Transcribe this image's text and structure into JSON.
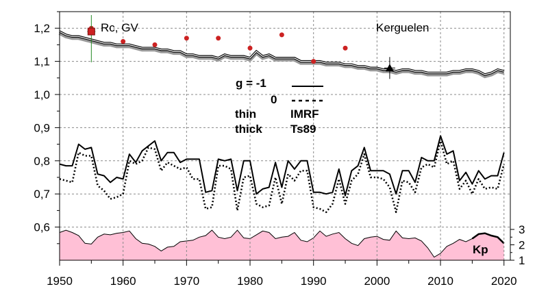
{
  "chart_data": {
    "type": "line",
    "title": "",
    "xlabel": "",
    "ylabel": "",
    "xlim": [
      1950,
      2021
    ],
    "ylim": [
      0.5,
      1.25
    ],
    "x_ticks": [
      "1950",
      "1960",
      "1970",
      "1980",
      "1990",
      "2000",
      "2010",
      "2020"
    ],
    "y_ticks": [
      "0,6",
      "0,7",
      "0,8",
      "0,9",
      "1,0",
      "1,1",
      "1,2"
    ],
    "kp_axis": {
      "ticks": [
        "1",
        "2",
        "3"
      ],
      "label": "Kp"
    },
    "grid": true,
    "annotations": {
      "station": "Kerguelen",
      "rc_label": "Rc, GV",
      "legend_g": "g  = -1",
      "legend_zero": "0",
      "legend_thin": "thin",
      "legend_thick": "thick",
      "legend_imrf": "IMRF",
      "legend_ts89": "Ts89",
      "kp_label": "Kp"
    },
    "years": [
      1950,
      1951,
      1952,
      1953,
      1954,
      1955,
      1956,
      1957,
      1958,
      1959,
      1960,
      1961,
      1962,
      1963,
      1964,
      1965,
      1966,
      1967,
      1968,
      1969,
      1970,
      1971,
      1972,
      1973,
      1974,
      1975,
      1976,
      1977,
      1978,
      1979,
      1980,
      1981,
      1982,
      1983,
      1984,
      1985,
      1986,
      1987,
      1988,
      1989,
      1990,
      1991,
      1992,
      1993,
      1994,
      1995,
      1996,
      1997,
      1998,
      1999,
      2000,
      2001,
      2002,
      2003,
      2004,
      2005,
      2006,
      2007,
      2008,
      2009,
      2010,
      2011,
      2012,
      2013,
      2014,
      2015,
      2016,
      2017,
      2018,
      2019,
      2020
    ],
    "series": [
      {
        "style": "solid",
        "values": [
          0.79,
          0.785,
          0.785,
          0.85,
          0.835,
          0.84,
          0.76,
          0.755,
          0.735,
          0.75,
          0.745,
          0.82,
          0.795,
          0.83,
          0.845,
          0.86,
          0.8,
          0.825,
          0.825,
          0.795,
          0.805,
          0.805,
          0.805,
          0.705,
          0.71,
          0.805,
          0.8,
          0.805,
          0.71,
          0.8,
          0.8,
          0.7,
          0.715,
          0.72,
          0.795,
          0.72,
          0.8,
          0.775,
          0.8,
          0.8,
          0.705,
          0.705,
          0.7,
          0.705,
          0.775,
          0.695,
          0.77,
          0.785,
          0.84,
          0.77,
          0.77,
          0.77,
          0.76,
          0.7,
          0.77,
          0.77,
          0.735,
          0.81,
          0.8,
          0.8,
          0.875,
          0.82,
          0.83,
          0.74,
          0.765,
          0.73,
          0.77,
          0.745,
          0.755,
          0.755,
          0.825
        ]
      },
      {
        "style": "dotted",
        "values": [
          0.745,
          0.74,
          0.735,
          0.825,
          0.815,
          0.815,
          0.725,
          0.71,
          0.685,
          0.69,
          0.7,
          0.8,
          0.79,
          0.8,
          0.84,
          0.835,
          0.77,
          0.795,
          0.785,
          0.775,
          0.78,
          0.745,
          0.745,
          0.655,
          0.66,
          0.785,
          0.785,
          0.775,
          0.65,
          0.75,
          0.755,
          0.67,
          0.66,
          0.665,
          0.75,
          0.67,
          0.76,
          0.74,
          0.77,
          0.77,
          0.66,
          0.655,
          0.645,
          0.67,
          0.745,
          0.67,
          0.74,
          0.76,
          0.82,
          0.75,
          0.75,
          0.745,
          0.72,
          0.645,
          0.74,
          0.735,
          0.705,
          0.78,
          0.79,
          0.78,
          0.86,
          0.79,
          0.8,
          0.715,
          0.74,
          0.7,
          0.745,
          0.715,
          0.72,
          0.715,
          0.79
        ]
      }
    ],
    "rc_series": {
      "values": [
        1.19,
        1.18,
        1.175,
        1.175,
        1.17,
        1.165,
        1.16,
        1.155,
        1.155,
        1.15,
        1.15,
        1.15,
        1.145,
        1.14,
        1.14,
        1.14,
        1.135,
        1.135,
        1.13,
        1.13,
        1.12,
        1.12,
        1.115,
        1.115,
        1.115,
        1.11,
        1.12,
        1.115,
        1.115,
        1.115,
        1.11,
        1.13,
        1.115,
        1.12,
        1.11,
        1.11,
        1.11,
        1.11,
        1.1,
        1.1,
        1.1,
        1.1,
        1.095,
        1.095,
        1.095,
        1.09,
        1.09,
        1.085,
        1.085,
        1.08,
        1.08,
        1.075,
        1.075,
        1.07,
        1.075,
        1.075,
        1.07,
        1.07,
        1.065,
        1.065,
        1.065,
        1.065,
        1.07,
        1.07,
        1.075,
        1.075,
        1.07,
        1.06,
        1.065,
        1.075,
        1.07
      ]
    },
    "rc_points": {
      "x": [
        1955,
        1960,
        1965,
        1970,
        1975,
        1980,
        1985,
        1990,
        1995
      ],
      "values": [
        1.2,
        1.16,
        1.15,
        1.17,
        1.17,
        1.14,
        1.18,
        1.1,
        1.14
      ],
      "color": "#cc2222"
    },
    "rc_marker_square": {
      "x": 1955,
      "value": 1.19,
      "color": "#cc2222"
    },
    "rc_marker_triangle": {
      "x": 2002,
      "value": 1.08,
      "color": "#000000"
    },
    "kp_series": {
      "ylim": [
        1,
        3
      ],
      "fill_color": "#ffc0d6",
      "values": [
        2.8,
        2.95,
        2.8,
        2.6,
        2.1,
        2.05,
        2.5,
        2.7,
        2.65,
        2.75,
        2.8,
        2.9,
        2.4,
        2.1,
        2.05,
        1.9,
        1.6,
        1.85,
        1.9,
        2.2,
        2.25,
        2.3,
        2.5,
        2.6,
        2.95,
        2.5,
        2.4,
        2.5,
        2.95,
        2.45,
        2.4,
        2.65,
        2.9,
        2.8,
        2.4,
        2.5,
        2.55,
        2.8,
        2.3,
        2.2,
        2.45,
        2.9,
        2.55,
        2.7,
        2.8,
        2.4,
        2.1,
        1.95,
        2.4,
        2.5,
        2.55,
        2.35,
        2.3,
        2.9,
        2.45,
        2.4,
        2.45,
        2.25,
        1.8,
        1.2,
        1.45,
        1.9,
        2.1,
        2.35,
        2.2,
        2.4,
        2.7,
        2.75,
        2.6,
        2.5,
        2.1
      ]
    },
    "colors": {
      "grid": "#888888",
      "rc_line": "#000000",
      "rc_shadow": "#999999",
      "square_line": "#228822"
    }
  }
}
